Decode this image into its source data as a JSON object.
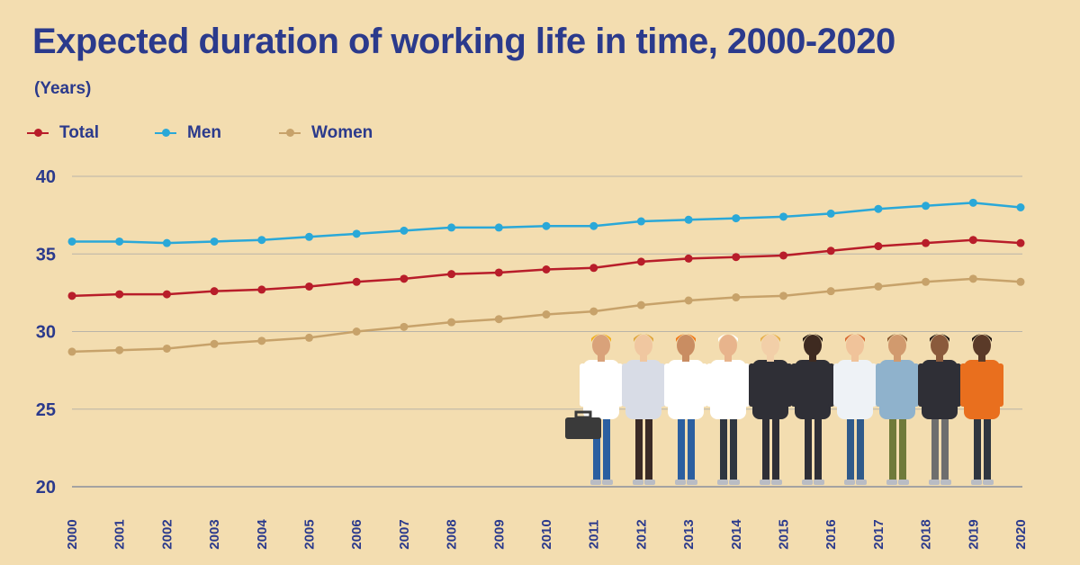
{
  "chart_data": {
    "type": "line",
    "title": "Expected duration of working life in time, 2000-2020",
    "subtitle": "(Years)",
    "x": [
      "2000",
      "2001",
      "2002",
      "2003",
      "2004",
      "2005",
      "2006",
      "2007",
      "2008",
      "2009",
      "2010",
      "2011",
      "2012",
      "2013",
      "2014",
      "2015",
      "2016",
      "2017",
      "2018",
      "2019",
      "2020"
    ],
    "ylim": [
      20,
      40
    ],
    "yticks": [
      20,
      25,
      30,
      35,
      40
    ],
    "grid": true,
    "legend_position": "top-left",
    "series": [
      {
        "name": "Total",
        "color": "#b81d2a",
        "values": [
          32.3,
          32.4,
          32.4,
          32.6,
          32.7,
          32.9,
          33.2,
          33.4,
          33.7,
          33.8,
          34.0,
          34.1,
          34.5,
          34.7,
          34.8,
          34.9,
          35.2,
          35.5,
          35.7,
          35.9,
          35.7
        ]
      },
      {
        "name": "Men",
        "color": "#2aa8d8",
        "values": [
          35.8,
          35.8,
          35.7,
          35.8,
          35.9,
          36.1,
          36.3,
          36.5,
          36.7,
          36.7,
          36.8,
          36.8,
          37.1,
          37.2,
          37.3,
          37.4,
          37.6,
          37.9,
          38.1,
          38.3,
          38.0
        ]
      },
      {
        "name": "Women",
        "color": "#c7a26a",
        "values": [
          28.7,
          28.8,
          28.9,
          29.2,
          29.4,
          29.6,
          30.0,
          30.3,
          30.6,
          30.8,
          31.1,
          31.3,
          31.7,
          32.0,
          32.2,
          32.3,
          32.6,
          32.9,
          33.2,
          33.4,
          33.2
        ]
      }
    ],
    "illustration": "workers-illustration"
  }
}
